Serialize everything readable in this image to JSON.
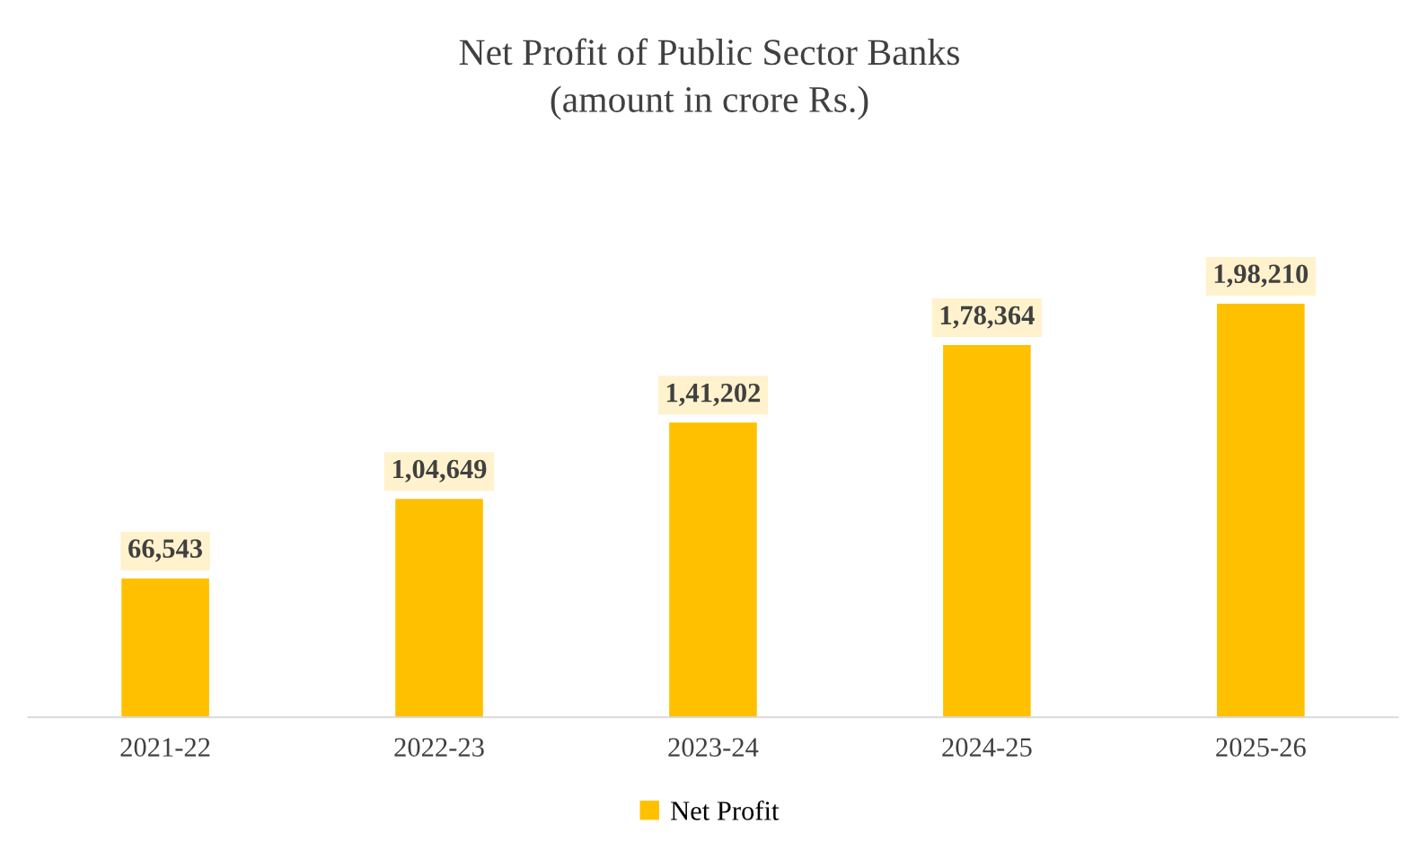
{
  "chart_data": {
    "type": "bar",
    "title": "Net Profit of Public Sector Banks",
    "subtitle": "(amount in crore Rs.)",
    "categories": [
      "2021-22",
      "2022-23",
      "2023-24",
      "2024-25",
      "2025-26"
    ],
    "series": [
      {
        "name": "Net Profit",
        "color": "#ffc000",
        "values": [
          66543,
          104649,
          141202,
          178364,
          198210
        ],
        "value_labels": [
          "66,543",
          "1,04,649",
          "1,41,202",
          "1,78,364",
          "1,98,210"
        ]
      }
    ],
    "legend": "bottom"
  }
}
